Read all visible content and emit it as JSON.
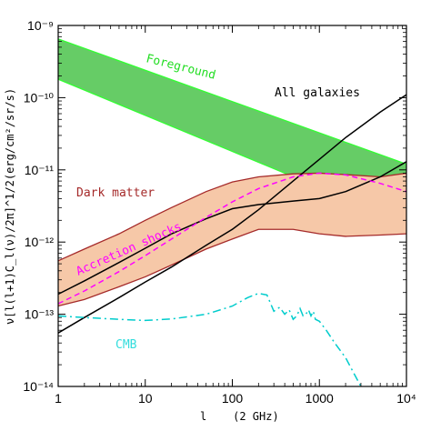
{
  "chart_data": {
    "type": "area",
    "xscale": "log",
    "yscale": "log",
    "xlim": [
      1,
      10000
    ],
    "ylim": [
      1e-14,
      1e-09
    ],
    "xlabel": "l    (2 GHz)",
    "ylabel": "ν[l(l+1)C_l(ν)/2π]^1/2(erg/cm²/sr/s)",
    "xtick_labels": [
      "1",
      "10",
      "100",
      "1000",
      "10⁴"
    ],
    "ytick_labels": [
      "10⁻¹⁴",
      "10⁻¹³",
      "10⁻¹²",
      "10⁻¹¹",
      "10⁻¹⁰",
      "10⁻⁹"
    ],
    "grid": false,
    "series": [
      {
        "name": "Foreground",
        "kind": "band",
        "color": "#66cc66",
        "edge_color": "#33ff33",
        "label_color": "#22dd22",
        "x": [
          1,
          10000
        ],
        "upper": [
          6.5e-10,
          1.2e-11
        ],
        "lower": [
          1.8e-10,
          1.8e-12
        ]
      },
      {
        "name": "Dark matter",
        "kind": "band",
        "color": "#f6c8a8",
        "edge_color": "#a52a2a",
        "label_color": "#a52a2a",
        "x_upper": [
          1,
          2,
          5,
          10,
          20,
          50,
          100,
          200,
          500,
          1000,
          2000,
          5000,
          10000
        ],
        "upper": [
          5.5e-13,
          8e-13,
          1.3e-12,
          2e-12,
          3e-12,
          5e-12,
          6.8e-12,
          8e-12,
          8.8e-12,
          9e-12,
          8.6e-12,
          8e-12,
          9e-12
        ],
        "x_lower": [
          1,
          2,
          5,
          10,
          20,
          50,
          100,
          200,
          500,
          1000,
          2000,
          5000,
          10000
        ],
        "lower": [
          1.3e-13,
          1.6e-13,
          2.4e-13,
          3.3e-13,
          4.8e-13,
          8e-13,
          1.1e-12,
          1.5e-12,
          1.5e-12,
          1.3e-12,
          1.2e-12,
          1.25e-12,
          1.3e-12
        ]
      },
      {
        "name": "All galaxies",
        "kind": "line",
        "color": "#000000",
        "label_color": "#000000",
        "x": [
          1,
          2,
          5,
          10,
          20,
          50,
          100,
          200,
          500,
          1000,
          2000,
          5000,
          10000
        ],
        "y": [
          5.5e-14,
          9e-14,
          1.7e-13,
          2.8e-13,
          4.5e-13,
          9e-13,
          1.5e-12,
          2.8e-12,
          7e-12,
          1.4e-11,
          2.8e-11,
          6.3e-11,
          1.1e-10
        ]
      },
      {
        "name": "",
        "kind": "line",
        "color": "#000000",
        "x": [
          1,
          2,
          5,
          10,
          20,
          50,
          100,
          200,
          500,
          1000,
          2000,
          5000,
          10000
        ],
        "y": [
          1.9e-13,
          2.9e-13,
          5.2e-13,
          8.2e-13,
          1.3e-12,
          2.1e-12,
          2.9e-12,
          3.3e-12,
          3.7e-12,
          4e-12,
          5e-12,
          8e-12,
          1.3e-11
        ]
      },
      {
        "name": "Accretion shocks",
        "kind": "line",
        "style": "dashed",
        "color": "#ff00ff",
        "label_color": "#ff00ff",
        "x": [
          1,
          2,
          5,
          10,
          20,
          50,
          100,
          200,
          500,
          1000,
          2000,
          5000,
          10000
        ],
        "y": [
          1.4e-13,
          2.1e-13,
          3.9e-13,
          6.5e-13,
          1.1e-12,
          2.2e-12,
          3.6e-12,
          5.5e-12,
          8e-12,
          9e-12,
          8.5e-12,
          6.5e-12,
          5e-12
        ]
      },
      {
        "name": "CMB",
        "kind": "line",
        "style": "dashdot",
        "color": "#00cccc",
        "label_color": "#33dddd",
        "x": [
          1,
          2,
          5,
          10,
          20,
          50,
          100,
          150,
          200,
          250,
          300,
          350,
          400,
          450,
          500,
          550,
          600,
          650,
          700,
          750,
          800,
          850,
          900,
          1000,
          1200,
          1500,
          2000,
          2500,
          3000
        ],
        "y": [
          9.5e-14,
          9e-14,
          8.5e-14,
          8.2e-14,
          8.6e-14,
          1e-13,
          1.3e-13,
          1.7e-13,
          1.95e-13,
          1.85e-13,
          1.1e-13,
          1.25e-13,
          1e-13,
          1.15e-13,
          8.5e-14,
          9.5e-14,
          1.2e-13,
          9.5e-14,
          1e-13,
          1.15e-13,
          9.5e-14,
          1.1e-13,
          8.5e-14,
          8e-14,
          6e-14,
          4e-14,
          2.5e-14,
          1.5e-14,
          1e-14
        ]
      }
    ]
  }
}
